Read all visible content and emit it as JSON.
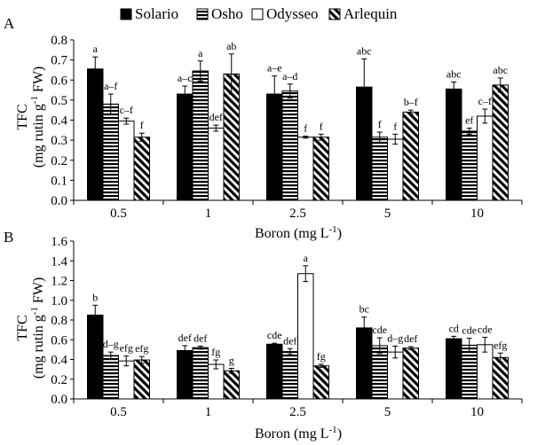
{
  "legend": [
    {
      "name": "Solario",
      "pattern": "solid"
    },
    {
      "name": "Osho",
      "pattern": "hstripes"
    },
    {
      "name": "Odysseo",
      "pattern": "white"
    },
    {
      "name": "Arlequin",
      "pattern": "diag"
    }
  ],
  "chart_data": [
    {
      "panel_label": "A",
      "type": "bar",
      "xlabel": "Boron (mg L",
      "xlabel_sup": "-1",
      "xlabel_close": ")",
      "ylabel_line1": "TFC",
      "ylabel_line2": "(mg rutin g",
      "ylabel_sup": "-1",
      "ylabel_end": " FW)",
      "categories": [
        "0.5",
        "1",
        "2.5",
        "5",
        "10"
      ],
      "ylim": [
        0,
        0.8
      ],
      "yticks": [
        "0.0",
        "0.1",
        "0.2",
        "0.3",
        "0.4",
        "0.5",
        "0.6",
        "0.7",
        "0.8"
      ],
      "series": [
        {
          "name": "Solario",
          "values": [
            0.655,
            0.53,
            0.53,
            0.565,
            0.555
          ],
          "errors": [
            0.06,
            0.04,
            0.09,
            0.14,
            0.035
          ],
          "letters": [
            "a",
            "a–c",
            "a–e",
            "abc",
            "abc"
          ]
        },
        {
          "name": "Osho",
          "values": [
            0.48,
            0.645,
            0.545,
            0.315,
            0.345
          ],
          "errors": [
            0.05,
            0.05,
            0.035,
            0.025,
            0.015
          ],
          "letters": [
            "a–f",
            "a",
            "a–d",
            "f",
            "ef"
          ]
        },
        {
          "name": "Odysseo",
          "values": [
            0.395,
            0.36,
            0.315,
            0.305,
            0.42
          ],
          "errors": [
            0.015,
            0.015,
            0.005,
            0.025,
            0.035
          ],
          "letters": [
            "c–f",
            "def",
            "f",
            "f",
            "c–f"
          ]
        },
        {
          "name": "Arlequin",
          "values": [
            0.315,
            0.63,
            0.315,
            0.44,
            0.575
          ],
          "errors": [
            0.02,
            0.1,
            0.015,
            0.01,
            0.035
          ],
          "letters": [
            "f",
            "ab",
            "f",
            "b–f",
            "abc"
          ]
        }
      ]
    },
    {
      "panel_label": "B",
      "type": "bar",
      "xlabel": "Boron (mg L",
      "xlabel_sup": "-1",
      "xlabel_close": ")",
      "ylabel_line1": "TFC",
      "ylabel_line2": "(mg rutin g",
      "ylabel_sup": "-1",
      "ylabel_end": " FW)",
      "categories": [
        "0.5",
        "1",
        "2.5",
        "5",
        "10"
      ],
      "ylim": [
        0,
        1.6
      ],
      "yticks": [
        "0.0",
        "0.2",
        "0.4",
        "0.6",
        "0.8",
        "1.0",
        "1.2",
        "1.4",
        "1.6"
      ],
      "series": [
        {
          "name": "Solario",
          "values": [
            0.85,
            0.49,
            0.555,
            0.72,
            0.61
          ],
          "errors": [
            0.1,
            0.05,
            0.01,
            0.11,
            0.025
          ],
          "letters": [
            "b",
            "def",
            "cde",
            "bc",
            "cd"
          ]
        },
        {
          "name": "Osho",
          "values": [
            0.44,
            0.52,
            0.48,
            0.54,
            0.545
          ],
          "errors": [
            0.035,
            0.015,
            0.03,
            0.08,
            0.07
          ],
          "letters": [
            "d–g",
            "def",
            "def",
            "cde",
            "cde"
          ]
        },
        {
          "name": "Odysseo",
          "values": [
            0.385,
            0.35,
            1.27,
            0.475,
            0.55
          ],
          "errors": [
            0.05,
            0.045,
            0.08,
            0.06,
            0.075
          ],
          "letters": [
            "efg",
            "fg",
            "a",
            "d–g",
            "cde"
          ]
        },
        {
          "name": "Arlequin",
          "values": [
            0.395,
            0.285,
            0.335,
            0.515,
            0.42
          ],
          "errors": [
            0.035,
            0.025,
            0.015,
            0.015,
            0.045
          ],
          "letters": [
            "efg",
            "g",
            "fg",
            "def",
            "efg"
          ]
        }
      ]
    }
  ]
}
